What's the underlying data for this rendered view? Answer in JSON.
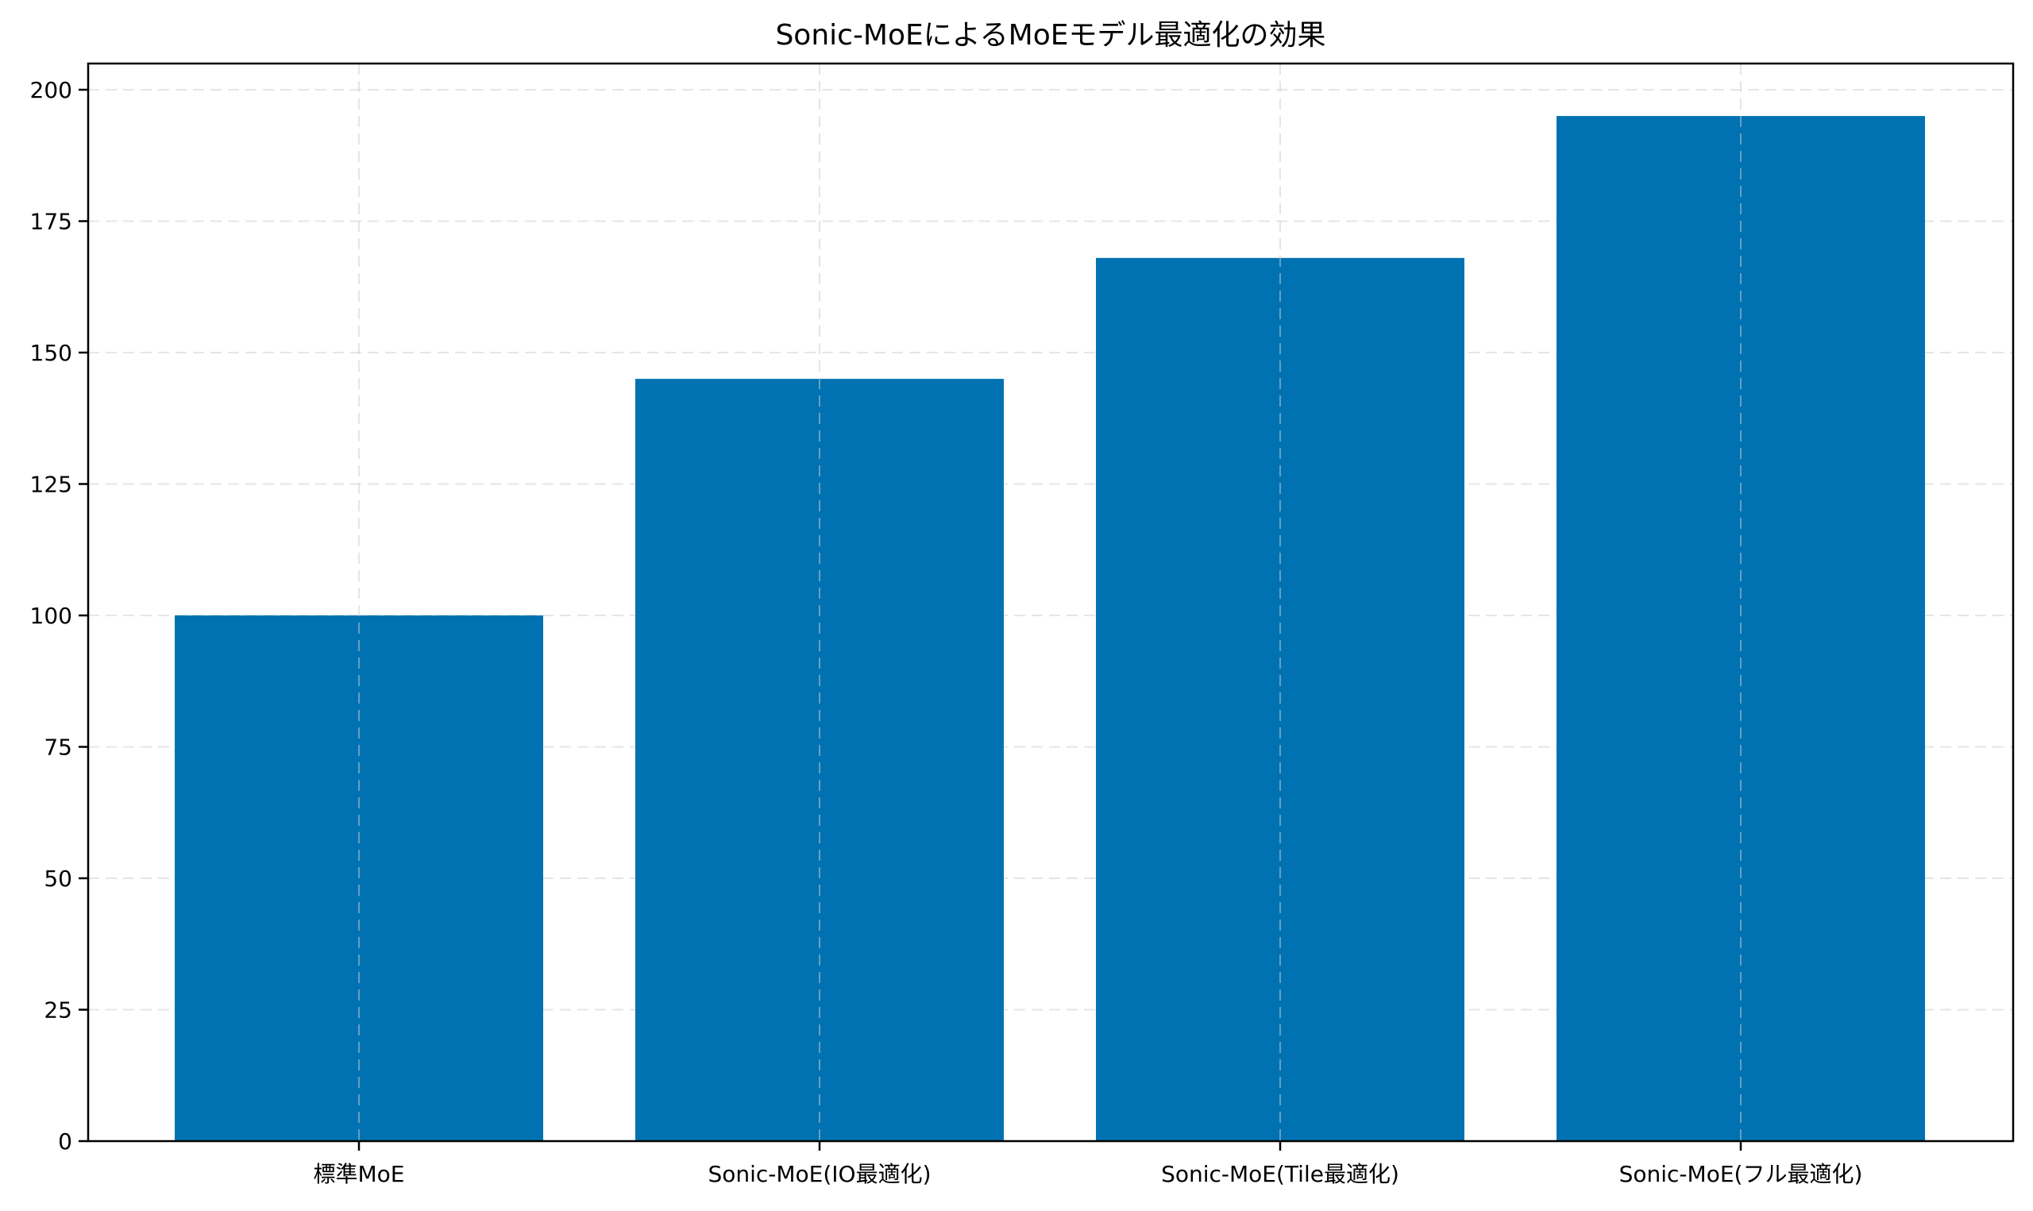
{
  "chart_data": {
    "type": "bar",
    "title": "Sonic-MoEによるMoEモデル最適化の効果",
    "xlabel": "",
    "ylabel": "",
    "categories": [
      "標準MoE",
      "Sonic-MoE(IO最適化)",
      "Sonic-MoE(Tile最適化)",
      "Sonic-MoE(フル最適化)"
    ],
    "values": [
      100,
      145,
      168,
      195
    ],
    "ylim": [
      0,
      205
    ],
    "yticks": [
      0,
      25,
      50,
      75,
      100,
      125,
      150,
      175,
      200
    ],
    "grid": true,
    "grid_style": "dashed",
    "legend": null
  },
  "colors": {
    "bar": "#0072B2",
    "grid": "#e5e5e5",
    "axis": "#000000"
  }
}
